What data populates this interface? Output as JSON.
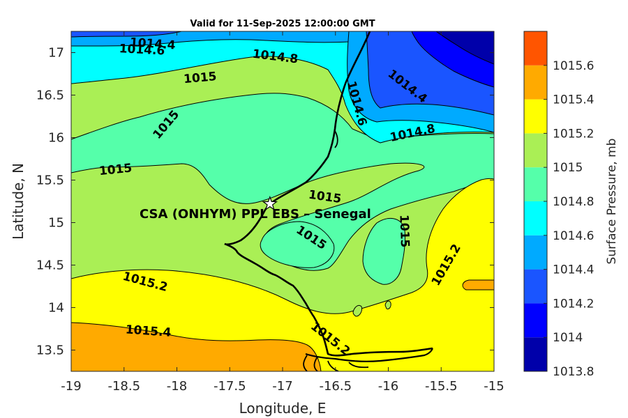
{
  "title": "Valid for 11-Sep-2025 12:00:00 GMT",
  "site_label": "CSA (ONHYM) PPL EBS  – Senegal",
  "site_marker": {
    "icon": "star-icon",
    "lon": -17.12,
    "lat": 15.22
  },
  "colorbar": {
    "title": "Surface Pressure, mb",
    "levels": [
      "1013.8",
      "1014",
      "1014.2",
      "1014.4",
      "1014.6",
      "1014.8",
      "1015",
      "1015.2",
      "1015.4",
      "1015.6"
    ],
    "colors": [
      "#0000aa",
      "#0000ff",
      "#1a55ff",
      "#00aaff",
      "#00ffff",
      "#55ffaa",
      "#aaef55",
      "#ffff00",
      "#ffaa00",
      "#ff5500"
    ]
  },
  "chart_data": {
    "type": "contour map",
    "title": "Valid for 11-Sep-2025 12:00:00 GMT",
    "xlabel": "Longitude, E",
    "ylabel": "Latitude, N",
    "xlim": [
      -19,
      -15
    ],
    "ylim": [
      13.25,
      17.25
    ],
    "xticks": [
      "-19",
      "-18.5",
      "-18",
      "-17.5",
      "-17",
      "-16.5",
      "-16",
      "-15.5",
      "-15"
    ],
    "yticks": [
      "13.5",
      "14",
      "14.5",
      "15",
      "15.5",
      "16",
      "16.5",
      "17"
    ],
    "contour_labels": [
      {
        "text": "1014.4",
        "lon": -18.23,
        "lat": 17.1
      },
      {
        "text": "1014.6",
        "lon": -18.33,
        "lat": 17.03
      },
      {
        "text": "1014.8",
        "lon": -17.07,
        "lat": 16.95
      },
      {
        "text": "1015",
        "lon": -17.78,
        "lat": 16.7
      },
      {
        "text": "1015",
        "lon": -18.1,
        "lat": 16.15
      },
      {
        "text": "1015",
        "lon": -18.58,
        "lat": 15.62
      },
      {
        "text": "1015",
        "lon": -16.6,
        "lat": 15.3
      },
      {
        "text": "1015",
        "lon": -16.73,
        "lat": 14.82
      },
      {
        "text": "1015",
        "lon": -15.85,
        "lat": 14.9
      },
      {
        "text": "1014.6",
        "lon": -16.3,
        "lat": 16.4
      },
      {
        "text": "1014.4",
        "lon": -15.82,
        "lat": 16.6
      },
      {
        "text": "1014.8",
        "lon": -15.77,
        "lat": 16.05
      },
      {
        "text": "1015.2",
        "lon": -18.3,
        "lat": 14.3
      },
      {
        "text": "1015.2",
        "lon": -15.45,
        "lat": 14.5
      },
      {
        "text": "1015.4",
        "lon": -18.27,
        "lat": 13.72
      },
      {
        "text": "1015.2",
        "lon": -16.55,
        "lat": 13.63
      }
    ],
    "units": "mb"
  }
}
